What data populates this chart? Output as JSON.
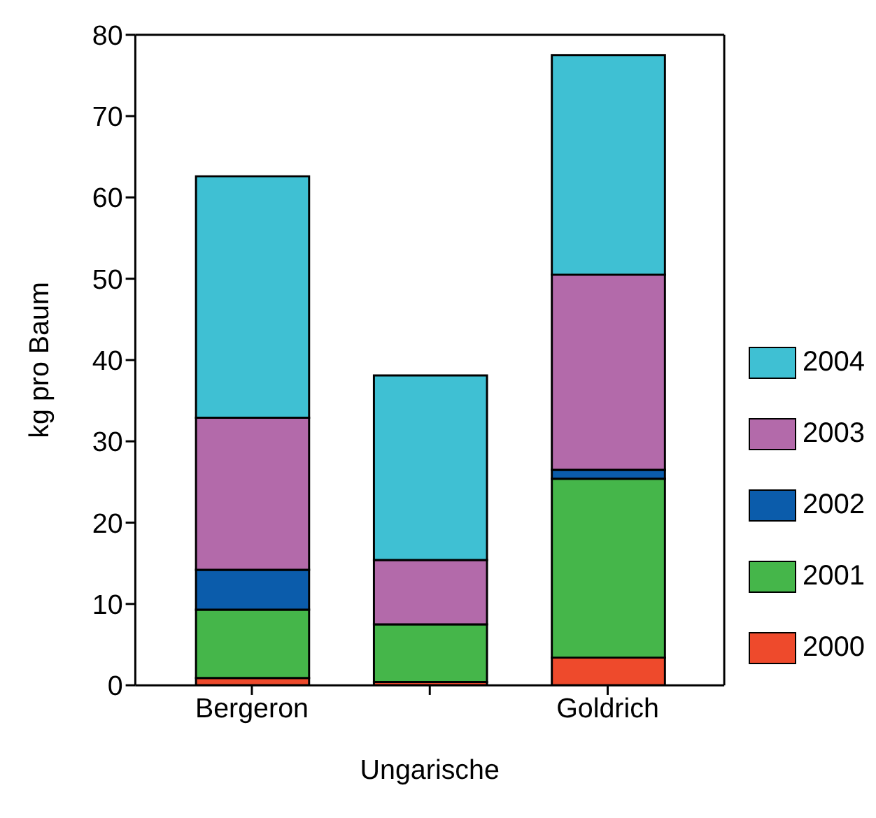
{
  "chart_data": {
    "type": "bar",
    "stacked": true,
    "categories": [
      "Bergeron",
      null,
      "Goldrich"
    ],
    "xlabel": "Ungarische",
    "ylabel": "kg pro Baum",
    "ylim": [
      0,
      80
    ],
    "yticks": [
      0,
      10,
      20,
      30,
      40,
      50,
      60,
      70,
      80
    ],
    "legend": "right",
    "grid": false,
    "series": [
      {
        "name": "2000",
        "color": "#ee4a2c",
        "values": [
          0.9,
          0.4,
          3.4
        ]
      },
      {
        "name": "2001",
        "color": "#45b64a",
        "values": [
          8.4,
          7.1,
          22.0
        ]
      },
      {
        "name": "2002",
        "color": "#0b5cab",
        "values": [
          4.9,
          0,
          1.1
        ]
      },
      {
        "name": "2003",
        "color": "#b36aaa",
        "values": [
          18.7,
          7.9,
          24.0
        ]
      },
      {
        "name": "2004",
        "color": "#3fc0d3",
        "values": [
          29.7,
          22.7,
          27.0
        ]
      }
    ]
  }
}
